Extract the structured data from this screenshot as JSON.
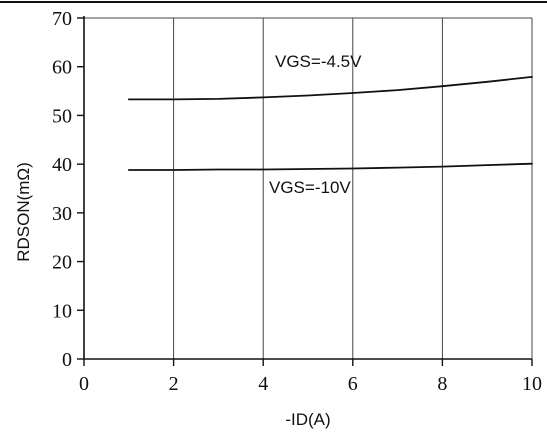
{
  "chart_data": {
    "type": "line",
    "title": "",
    "xlabel": "-ID(A)",
    "ylabel": "RDSON(mΩ)",
    "xlim": [
      0,
      10
    ],
    "ylim": [
      0,
      70
    ],
    "x_ticks": [
      "0",
      "2",
      "4",
      "6",
      "8",
      "10"
    ],
    "y_ticks": [
      "0",
      "10",
      "20",
      "30",
      "40",
      "50",
      "60",
      "70"
    ],
    "grid": true,
    "series": [
      {
        "name": "VGS=-4.5V",
        "color": "#111111",
        "x": [
          1,
          2,
          3,
          4,
          5,
          6,
          7,
          8,
          9,
          10
        ],
        "y": [
          53.3,
          53.3,
          53.4,
          53.7,
          54.1,
          54.6,
          55.2,
          56.0,
          56.9,
          57.9
        ]
      },
      {
        "name": "VGS=-10V",
        "color": "#111111",
        "x": [
          1,
          2,
          3,
          4,
          5,
          6,
          7,
          8,
          9,
          10
        ],
        "y": [
          38.8,
          38.8,
          38.9,
          38.9,
          39.0,
          39.1,
          39.3,
          39.5,
          39.8,
          40.1
        ]
      }
    ]
  }
}
